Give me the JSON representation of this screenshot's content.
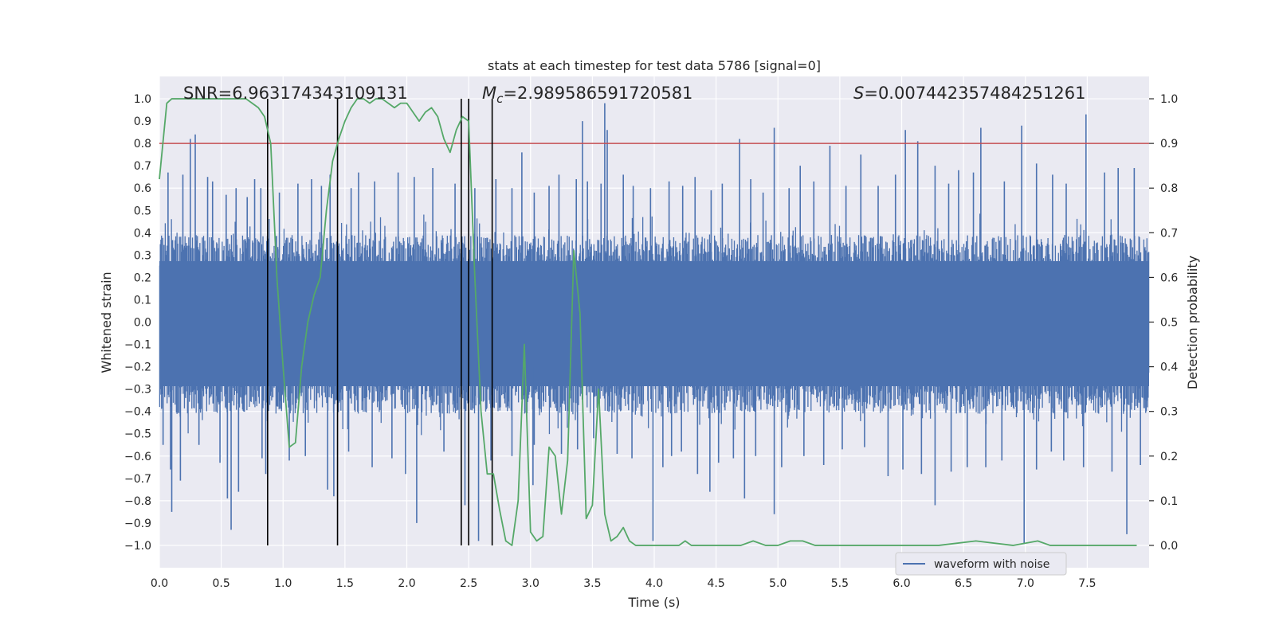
{
  "chart_data": {
    "type": "line",
    "title": "stats at each timestep for test data 5786 [signal=0]",
    "xlabel": "Time (s)",
    "ylabel": "Whitened strain",
    "y2label": "Detection probability",
    "xlim": [
      0,
      8
    ],
    "ylim": [
      -1.1,
      1.1
    ],
    "y2lim": [
      -0.05,
      1.05
    ],
    "xticks": [
      0.0,
      0.5,
      1.0,
      1.5,
      2.0,
      2.5,
      3.0,
      3.5,
      4.0,
      4.5,
      5.0,
      5.5,
      6.0,
      6.5,
      7.0,
      7.5
    ],
    "yticks": [
      -1.0,
      -0.9,
      -0.8,
      -0.7,
      -0.6,
      -0.5,
      -0.4,
      -0.3,
      -0.2,
      -0.1,
      0.0,
      0.1,
      0.2,
      0.3,
      0.4,
      0.5,
      0.6,
      0.7,
      0.8,
      0.9,
      1.0
    ],
    "y2ticks": [
      0.0,
      0.1,
      0.2,
      0.3,
      0.4,
      0.5,
      0.6,
      0.7,
      0.8,
      0.9,
      1.0
    ],
    "grid": true,
    "annotations": {
      "snr": "SNR=6.963174343109131",
      "mc_symbol": "M",
      "mc_sub": "c",
      "mc_value": "=2.989586591720581",
      "s_symbol": "S",
      "s_value": "=0.007442357484251261"
    },
    "threshold": {
      "y2": 0.9,
      "color": "#c44e52"
    },
    "vertical_lines": [
      0.875,
      1.44,
      2.44,
      2.5,
      2.69
    ],
    "series": [
      {
        "name": "waveform with noise",
        "axis": "left",
        "color": "#4c72b0",
        "style": "noise",
        "envelope_pos": 0.39,
        "envelope_neg": -0.41,
        "peaks": [
          [
            0.07,
            0.67
          ],
          [
            0.19,
            0.66
          ],
          [
            0.25,
            0.82
          ],
          [
            0.29,
            0.84
          ],
          [
            0.39,
            0.65
          ],
          [
            0.43,
            0.63
          ],
          [
            0.54,
            0.57
          ],
          [
            0.62,
            0.6
          ],
          [
            0.71,
            0.56
          ],
          [
            0.77,
            0.64
          ],
          [
            0.82,
            0.6
          ],
          [
            0.97,
            0.58
          ],
          [
            1.12,
            0.62
          ],
          [
            1.23,
            0.64
          ],
          [
            1.31,
            0.61
          ],
          [
            1.38,
            0.66
          ],
          [
            1.55,
            0.6
          ],
          [
            1.61,
            0.67
          ],
          [
            1.74,
            0.63
          ],
          [
            1.93,
            0.67
          ],
          [
            2.06,
            0.65
          ],
          [
            2.21,
            0.69
          ],
          [
            2.39,
            0.62
          ],
          [
            2.55,
            0.6
          ],
          [
            2.72,
            0.64
          ],
          [
            2.85,
            0.6
          ],
          [
            2.93,
            0.76
          ],
          [
            3.03,
            0.58
          ],
          [
            3.15,
            0.61
          ],
          [
            3.23,
            0.66
          ],
          [
            3.37,
            0.64
          ],
          [
            3.46,
            0.63
          ],
          [
            3.57,
            0.62
          ],
          [
            3.62,
            0.86
          ],
          [
            3.75,
            0.66
          ],
          [
            3.83,
            0.61
          ],
          [
            3.97,
            0.6
          ],
          [
            4.12,
            0.63
          ],
          [
            4.23,
            0.61
          ],
          [
            4.33,
            0.65
          ],
          [
            4.46,
            0.59
          ],
          [
            4.55,
            0.62
          ],
          [
            4.69,
            0.82
          ],
          [
            4.78,
            0.64
          ],
          [
            4.88,
            0.58
          ],
          [
            4.97,
            0.87
          ],
          [
            5.09,
            0.6
          ],
          [
            5.18,
            0.7
          ],
          [
            5.29,
            0.63
          ],
          [
            5.42,
            0.79
          ],
          [
            5.55,
            0.61
          ],
          [
            5.67,
            0.75
          ],
          [
            5.81,
            0.61
          ],
          [
            5.95,
            0.66
          ],
          [
            6.03,
            0.86
          ],
          [
            6.13,
            0.81
          ],
          [
            6.27,
            0.7
          ],
          [
            6.38,
            0.62
          ],
          [
            6.46,
            0.68
          ],
          [
            6.58,
            0.67
          ],
          [
            6.64,
            0.87
          ],
          [
            6.83,
            0.63
          ],
          [
            6.97,
            0.88
          ],
          [
            7.09,
            0.71
          ],
          [
            7.22,
            0.66
          ],
          [
            7.33,
            0.62
          ],
          [
            7.49,
            0.93
          ],
          [
            7.64,
            0.67
          ],
          [
            7.75,
            0.69
          ],
          [
            7.88,
            0.69
          ],
          [
            3.42,
            0.9
          ],
          [
            3.6,
            0.98
          ],
          [
            2.27,
            -0.31
          ],
          [
            1.84,
            -0.35
          ]
        ],
        "troughs": [
          [
            0.03,
            -0.55
          ],
          [
            0.09,
            -0.66
          ],
          [
            0.1,
            -0.85
          ],
          [
            0.17,
            -0.71
          ],
          [
            0.32,
            -0.55
          ],
          [
            0.49,
            -0.63
          ],
          [
            0.55,
            -0.79
          ],
          [
            0.58,
            -0.93
          ],
          [
            0.64,
            -0.76
          ],
          [
            0.83,
            -0.61
          ],
          [
            0.86,
            -0.68
          ],
          [
            1.05,
            -0.62
          ],
          [
            1.18,
            -0.6
          ],
          [
            1.36,
            -0.75
          ],
          [
            1.41,
            -0.78
          ],
          [
            1.53,
            -0.58
          ],
          [
            1.72,
            -0.65
          ],
          [
            1.88,
            -0.61
          ],
          [
            1.99,
            -0.68
          ],
          [
            2.08,
            -0.9
          ],
          [
            2.3,
            -0.58
          ],
          [
            2.47,
            -0.82
          ],
          [
            2.58,
            -0.98
          ],
          [
            2.68,
            -0.62
          ],
          [
            2.85,
            -0.6
          ],
          [
            3.03,
            -0.55
          ],
          [
            3.25,
            -0.59
          ],
          [
            3.38,
            -0.57
          ],
          [
            3.51,
            -0.52
          ],
          [
            3.7,
            -0.59
          ],
          [
            3.82,
            -0.61
          ],
          [
            3.99,
            -0.98
          ],
          [
            4.07,
            -0.65
          ],
          [
            4.14,
            -0.6
          ],
          [
            4.22,
            -0.58
          ],
          [
            4.35,
            -0.68
          ],
          [
            4.45,
            -0.76
          ],
          [
            4.52,
            -0.63
          ],
          [
            4.64,
            -0.61
          ],
          [
            4.73,
            -0.79
          ],
          [
            4.82,
            -0.6
          ],
          [
            4.97,
            -0.86
          ],
          [
            5.03,
            -0.65
          ],
          [
            5.21,
            -0.6
          ],
          [
            5.37,
            -0.64
          ],
          [
            5.52,
            -0.57
          ],
          [
            5.7,
            -0.56
          ],
          [
            5.89,
            -0.69
          ],
          [
            6.01,
            -0.66
          ],
          [
            6.16,
            -0.68
          ],
          [
            6.27,
            -0.82
          ],
          [
            6.4,
            -0.67
          ],
          [
            6.53,
            -0.65
          ],
          [
            6.68,
            -0.65
          ],
          [
            6.81,
            -0.62
          ],
          [
            6.99,
            -0.99
          ],
          [
            7.09,
            -0.66
          ],
          [
            7.21,
            -0.58
          ],
          [
            7.31,
            -0.62
          ],
          [
            7.47,
            -0.65
          ],
          [
            7.7,
            -0.67
          ],
          [
            7.82,
            -0.95
          ],
          [
            7.93,
            -0.64
          ],
          [
            3.02,
            -0.73
          ]
        ]
      },
      {
        "name": "",
        "axis": "right",
        "color": "#55a868",
        "style": "line",
        "x": [
          0.0,
          0.06,
          0.1,
          0.2,
          0.3,
          0.4,
          0.5,
          0.6,
          0.7,
          0.75,
          0.8,
          0.85,
          0.9,
          0.95,
          1.0,
          1.05,
          1.1,
          1.15,
          1.2,
          1.25,
          1.3,
          1.35,
          1.4,
          1.45,
          1.5,
          1.55,
          1.6,
          1.65,
          1.7,
          1.75,
          1.8,
          1.85,
          1.9,
          1.95,
          2.0,
          2.05,
          2.1,
          2.15,
          2.2,
          2.25,
          2.3,
          2.35,
          2.4,
          2.45,
          2.5,
          2.55,
          2.6,
          2.65,
          2.7,
          2.75,
          2.8,
          2.85,
          2.9,
          2.95,
          3.0,
          3.05,
          3.1,
          3.15,
          3.2,
          3.25,
          3.3,
          3.35,
          3.4,
          3.45,
          3.5,
          3.55,
          3.6,
          3.65,
          3.7,
          3.75,
          3.8,
          3.85,
          3.9,
          3.95,
          4.0,
          4.05,
          4.1,
          4.15,
          4.2,
          4.25,
          4.3,
          4.35,
          4.4,
          4.5,
          4.6,
          4.7,
          4.8,
          4.9,
          5.0,
          5.1,
          5.2,
          5.3,
          5.4,
          5.5,
          5.7,
          6.0,
          6.3,
          6.6,
          6.9,
          7.1,
          7.2,
          7.5,
          7.7,
          7.9
        ],
        "values": [
          0.82,
          0.99,
          1.0,
          1.0,
          1.0,
          1.0,
          1.0,
          1.0,
          1.0,
          0.99,
          0.98,
          0.96,
          0.9,
          0.6,
          0.4,
          0.22,
          0.23,
          0.4,
          0.5,
          0.56,
          0.6,
          0.75,
          0.86,
          0.91,
          0.95,
          0.98,
          1.0,
          1.0,
          0.99,
          1.0,
          1.0,
          0.99,
          0.98,
          0.99,
          0.99,
          0.97,
          0.95,
          0.97,
          0.98,
          0.96,
          0.91,
          0.88,
          0.93,
          0.96,
          0.95,
          0.6,
          0.3,
          0.16,
          0.16,
          0.08,
          0.01,
          0.0,
          0.1,
          0.45,
          0.03,
          0.01,
          0.02,
          0.22,
          0.2,
          0.07,
          0.19,
          0.66,
          0.52,
          0.06,
          0.09,
          0.35,
          0.07,
          0.01,
          0.02,
          0.04,
          0.01,
          0.0,
          0.0,
          0.0,
          0.0,
          0.0,
          0.0,
          0.0,
          0.0,
          0.01,
          0.0,
          0.0,
          0.0,
          0.0,
          0.0,
          0.0,
          0.01,
          0.0,
          0.0,
          0.01,
          0.01,
          0.0,
          0.0,
          0.0,
          0.0,
          0.0,
          0.0,
          0.01,
          0.0,
          0.01,
          0.0,
          0.0,
          0.0,
          0.0
        ]
      }
    ],
    "legend": {
      "position": "lower-right",
      "entries": [
        "waveform with noise"
      ]
    }
  }
}
